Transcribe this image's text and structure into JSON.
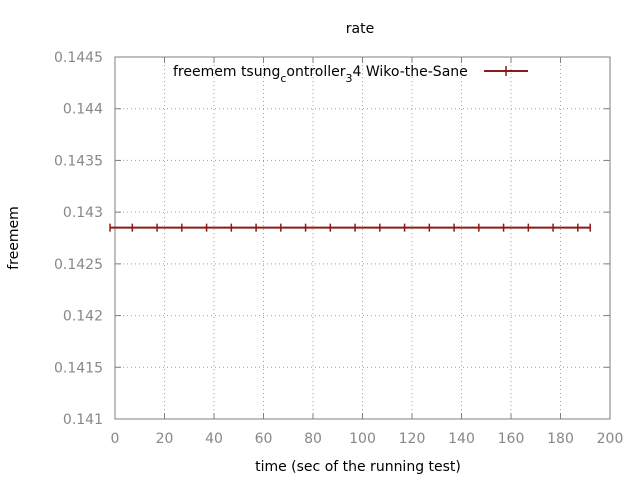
{
  "chart_data": {
    "type": "line",
    "title": "rate",
    "xlabel": "time (sec of the running test)",
    "ylabel": "freemem",
    "xlim": [
      0,
      200
    ],
    "ylim": [
      0.141,
      0.1445
    ],
    "x_ticks": [
      "0",
      "20",
      "40",
      "60",
      "80",
      "100",
      "120",
      "140",
      "160",
      "180",
      "200"
    ],
    "y_ticks": [
      "0.141",
      "0.1415",
      "0.142",
      "0.1425",
      "0.143",
      "0.1435",
      "0.144",
      "0.1445"
    ],
    "grid": true,
    "legend_position": "top-right",
    "series": [
      {
        "name": "freemem tsung_controller_3 4 Wiko-the-Sane",
        "legend_parts": {
          "a": "freemem tsung",
          "b": "c",
          "c": "ontroller",
          "d": "3",
          "e": "4 Wiko-the-Sane"
        },
        "color": "#8b1a1a",
        "x": [
          -2,
          7,
          17,
          27,
          37,
          47,
          57,
          67,
          77,
          87,
          97,
          107,
          117,
          127,
          137,
          147,
          157,
          167,
          177,
          187,
          192
        ],
        "y": [
          0.14285,
          0.14285,
          0.14285,
          0.14285,
          0.14285,
          0.14285,
          0.14285,
          0.14285,
          0.14285,
          0.14285,
          0.14285,
          0.14285,
          0.14285,
          0.14285,
          0.14285,
          0.14285,
          0.14285,
          0.14285,
          0.14285,
          0.14285,
          0.14285
        ]
      }
    ]
  }
}
